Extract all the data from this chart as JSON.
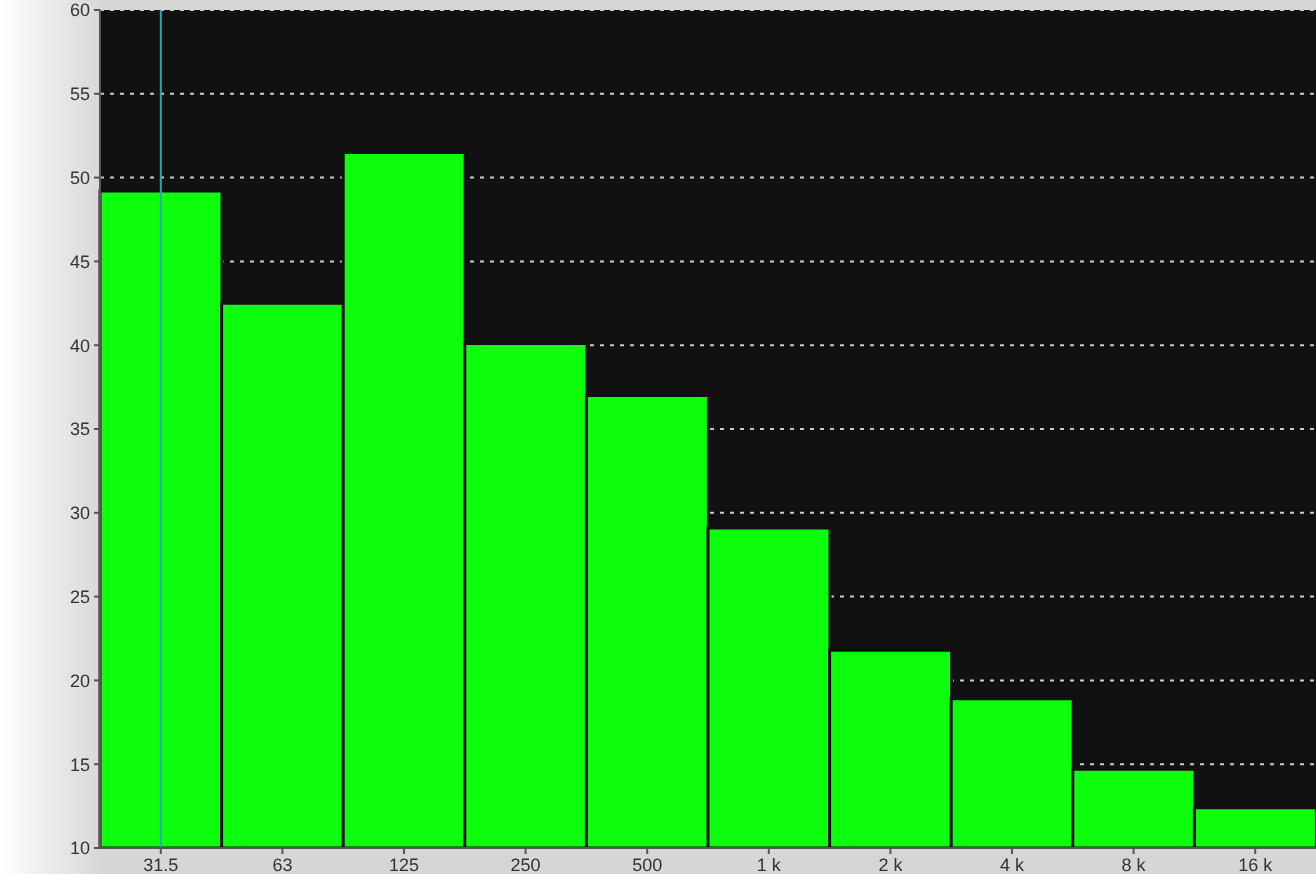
{
  "chart_data": {
    "type": "bar",
    "categories": [
      "31.5",
      "63",
      "125",
      "250",
      "500",
      "1 k",
      "2 k",
      "4 k",
      "8 k",
      "16 k"
    ],
    "series": [
      {
        "color": "#0dff0d",
        "values": [
          49.2,
          42.5,
          51.5,
          40.1,
          37.0,
          29.1,
          21.8,
          18.9,
          14.7,
          12.4
        ]
      }
    ],
    "ylim": [
      10,
      60
    ],
    "yticks": [
      10,
      15,
      20,
      25,
      30,
      35,
      40,
      45,
      50,
      55,
      60
    ],
    "grid": "y",
    "legend": false,
    "ref_lines": [
      {
        "axis": "x",
        "value": "31.5",
        "color": "#2aa7b5"
      }
    ]
  }
}
